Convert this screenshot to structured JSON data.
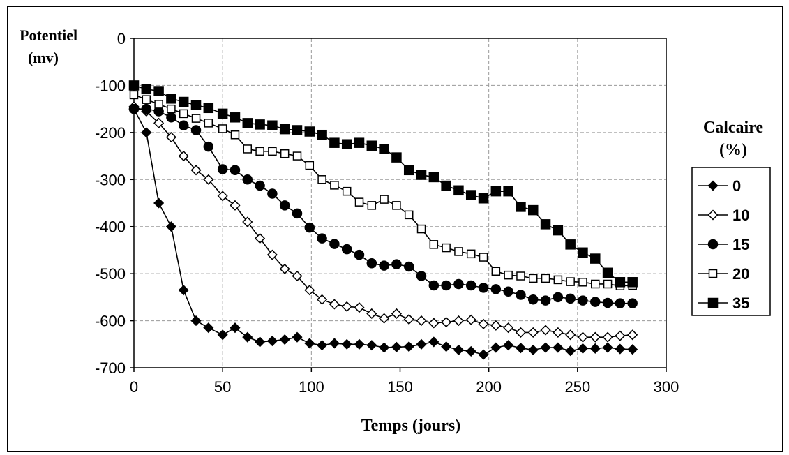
{
  "chart_data": {
    "type": "line",
    "ylabel_line1": "Potentiel",
    "ylabel_line2": "(mv)",
    "xlabel": "Temps (jours)",
    "legend_title_line1": "Calcaire",
    "legend_title_line2": "(%)",
    "legend_placement": "right",
    "grid": true,
    "xlim": [
      0,
      300
    ],
    "ylim": [
      -700,
      0
    ],
    "xticks": [
      0,
      50,
      100,
      150,
      200,
      250,
      300
    ],
    "yticks": [
      0,
      -100,
      -200,
      -300,
      -400,
      -500,
      -600,
      -700
    ],
    "colors": {
      "line": "#000000",
      "grid": "#9a9a9a",
      "background": "#ffffff"
    },
    "series": [
      {
        "name": "0",
        "marker": "diamond-filled",
        "x": [
          0,
          7,
          14,
          21,
          28,
          35,
          42,
          50,
          57,
          64,
          71,
          78,
          85,
          92,
          99,
          106,
          113,
          120,
          127,
          134,
          141,
          148,
          155,
          162,
          169,
          176,
          183,
          190,
          197,
          204,
          211,
          218,
          225,
          232,
          239,
          246,
          253,
          260,
          267,
          274,
          281
        ],
        "y": [
          -150,
          -200,
          -350,
          -400,
          -535,
          -600,
          -615,
          -630,
          -615,
          -635,
          -645,
          -643,
          -640,
          -635,
          -648,
          -652,
          -648,
          -650,
          -650,
          -652,
          -657,
          -656,
          -655,
          -650,
          -645,
          -655,
          -662,
          -665,
          -672,
          -657,
          -652,
          -658,
          -662,
          -657,
          -657,
          -664,
          -659,
          -659,
          -657,
          -660,
          -661
        ]
      },
      {
        "name": "10",
        "marker": "diamond-open",
        "x": [
          0,
          7,
          14,
          21,
          28,
          35,
          42,
          50,
          57,
          64,
          71,
          78,
          85,
          92,
          99,
          106,
          113,
          120,
          127,
          134,
          141,
          148,
          155,
          162,
          169,
          176,
          183,
          190,
          197,
          204,
          211,
          218,
          225,
          232,
          239,
          246,
          253,
          260,
          267,
          274,
          281
        ],
        "y": [
          -145,
          -155,
          -180,
          -210,
          -250,
          -280,
          -300,
          -335,
          -355,
          -390,
          -425,
          -460,
          -490,
          -505,
          -535,
          -555,
          -565,
          -570,
          -572,
          -585,
          -595,
          -585,
          -597,
          -600,
          -605,
          -603,
          -600,
          -598,
          -607,
          -610,
          -615,
          -625,
          -625,
          -620,
          -625,
          -630,
          -635,
          -635,
          -635,
          -632,
          -630
        ]
      },
      {
        "name": "15",
        "marker": "circle-filled",
        "x": [
          0,
          7,
          14,
          21,
          28,
          35,
          42,
          50,
          57,
          64,
          71,
          78,
          85,
          92,
          99,
          106,
          113,
          120,
          127,
          134,
          141,
          148,
          155,
          162,
          169,
          176,
          183,
          190,
          197,
          204,
          211,
          218,
          225,
          232,
          239,
          246,
          253,
          260,
          267,
          274,
          281
        ],
        "y": [
          -150,
          -150,
          -155,
          -168,
          -185,
          -195,
          -230,
          -278,
          -280,
          -300,
          -313,
          -330,
          -355,
          -372,
          -402,
          -425,
          -437,
          -448,
          -460,
          -478,
          -483,
          -480,
          -485,
          -505,
          -525,
          -525,
          -522,
          -525,
          -530,
          -533,
          -538,
          -545,
          -555,
          -557,
          -550,
          -553,
          -557,
          -560,
          -562,
          -563,
          -563
        ]
      },
      {
        "name": "20",
        "marker": "square-open",
        "x": [
          0,
          7,
          14,
          21,
          28,
          35,
          42,
          50,
          57,
          64,
          71,
          78,
          85,
          92,
          99,
          106,
          113,
          120,
          127,
          134,
          141,
          148,
          155,
          162,
          169,
          176,
          183,
          190,
          197,
          204,
          211,
          218,
          225,
          232,
          239,
          246,
          253,
          260,
          267,
          274,
          281
        ],
        "y": [
          -120,
          -130,
          -140,
          -150,
          -160,
          -170,
          -180,
          -192,
          -205,
          -235,
          -240,
          -240,
          -245,
          -250,
          -270,
          -300,
          -312,
          -325,
          -348,
          -355,
          -342,
          -355,
          -375,
          -405,
          -438,
          -445,
          -453,
          -458,
          -465,
          -495,
          -503,
          -505,
          -510,
          -510,
          -513,
          -517,
          -518,
          -522,
          -522,
          -526,
          -525
        ]
      },
      {
        "name": "35",
        "marker": "square-filled",
        "x": [
          0,
          7,
          14,
          21,
          28,
          35,
          42,
          50,
          57,
          64,
          71,
          78,
          85,
          92,
          99,
          106,
          113,
          120,
          127,
          134,
          141,
          148,
          155,
          162,
          169,
          176,
          183,
          190,
          197,
          204,
          211,
          218,
          225,
          232,
          239,
          246,
          253,
          260,
          267,
          274,
          281
        ],
        "y": [
          -100,
          -108,
          -112,
          -128,
          -135,
          -142,
          -148,
          -160,
          -168,
          -180,
          -183,
          -185,
          -193,
          -195,
          -198,
          -205,
          -222,
          -225,
          -222,
          -228,
          -235,
          -253,
          -280,
          -290,
          -295,
          -313,
          -323,
          -333,
          -340,
          -325,
          -325,
          -358,
          -365,
          -395,
          -408,
          -438,
          -455,
          -468,
          -498,
          -518,
          -518
        ]
      }
    ]
  }
}
